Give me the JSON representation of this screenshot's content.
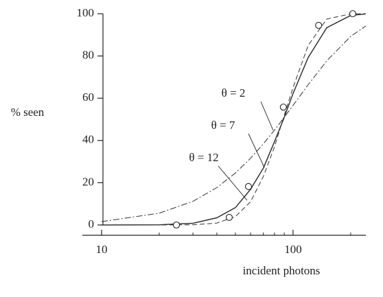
{
  "chart_data": {
    "type": "line",
    "x_label": "incident photons",
    "y_label": "% seen",
    "xscale": "log",
    "xlim": [
      10,
      240
    ],
    "ylim": [
      0,
      100
    ],
    "xticks": [
      10,
      100
    ],
    "xminorticks": [
      20,
      30,
      40,
      50,
      60,
      70,
      80,
      90,
      200
    ],
    "yticks": [
      0,
      20,
      40,
      60,
      80,
      100
    ],
    "color": "#333333",
    "series": [
      {
        "name": "θ = 2",
        "dash": "dash-dot",
        "x": [
          10,
          20,
          30,
          40,
          50,
          60,
          70,
          80,
          90,
          100,
          120,
          150,
          200,
          240
        ],
        "values": [
          1.6,
          5.6,
          11.2,
          17.7,
          24.6,
          31.6,
          38.4,
          44.9,
          51.0,
          56.6,
          66.4,
          77.7,
          89.3,
          94.2
        ]
      },
      {
        "name": "θ = 7",
        "dash": "solid",
        "x": [
          10,
          20,
          30,
          40,
          50,
          60,
          70,
          80,
          90,
          100,
          120,
          150,
          200,
          240
        ],
        "values": [
          0,
          0.1,
          0.8,
          3.4,
          8.2,
          16.9,
          26.9,
          39.4,
          51,
          62.2,
          79.3,
          93.4,
          99.2,
          99.9
        ]
      },
      {
        "name": "θ = 12",
        "dash": "dashed",
        "x": [
          10,
          20,
          30,
          40,
          50,
          60,
          70,
          80,
          90,
          100,
          120,
          150,
          200,
          240
        ],
        "values": [
          0,
          0,
          0.1,
          0.9,
          4,
          11,
          23,
          37,
          52,
          65,
          85,
          97.5,
          99.9,
          100
        ]
      }
    ],
    "points": {
      "x": [
        24.6,
        46.4,
        58.5,
        89,
        136,
        205
      ],
      "values": [
        0,
        3.6,
        18.2,
        55.8,
        94.5,
        100
      ]
    }
  }
}
